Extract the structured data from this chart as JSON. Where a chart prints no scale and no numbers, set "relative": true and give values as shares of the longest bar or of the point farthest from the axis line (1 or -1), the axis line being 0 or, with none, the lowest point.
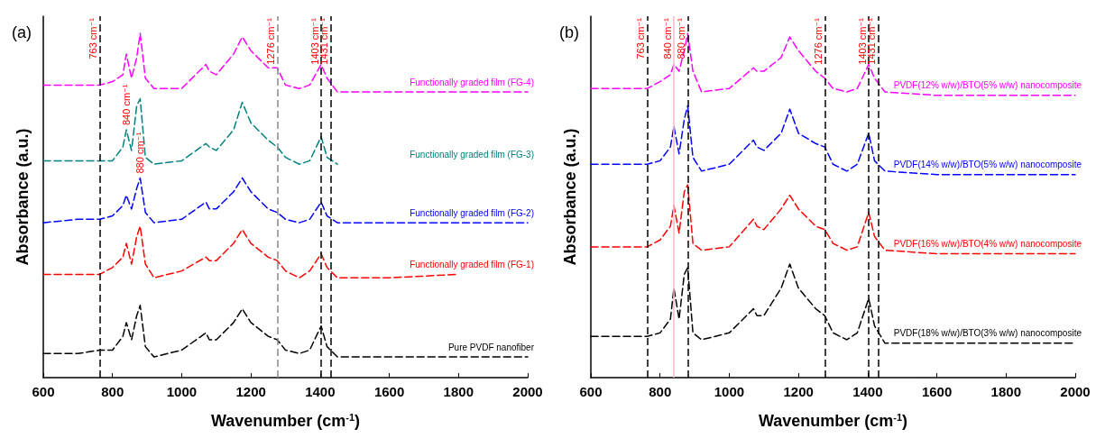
{
  "chart_data": [
    {
      "type": "line",
      "title": "(a)",
      "xlabel": "Wavenumber (cm$^{-1}$)",
      "ylabel": "Absorbance (a.u.)",
      "relative": true,
      "legend": false,
      "grid": false,
      "marker": "none",
      "line_style": "dashed",
      "xlim": [
        600,
        2000
      ],
      "xticks": [
        600,
        800,
        1000,
        1200,
        1400,
        1600,
        1800,
        2000
      ],
      "x": [
        600,
        700,
        763,
        800,
        830,
        840,
        855,
        870,
        880,
        895,
        920,
        1000,
        1070,
        1080,
        1100,
        1150,
        1175,
        1200,
        1250,
        1276,
        1300,
        1340,
        1370,
        1403,
        1420,
        1450,
        1600,
        1800,
        2000
      ],
      "series": [
        {
          "name": "Functionally graded film (FG-4)",
          "color": "#ff00ff",
          "values": [
            0.85,
            0.85,
            0.85,
            0.86,
            0.88,
            0.94,
            0.87,
            0.93,
            1.0,
            0.87,
            0.84,
            0.84,
            0.91,
            0.89,
            0.88,
            0.94,
            0.99,
            0.95,
            0.9,
            0.9,
            0.85,
            0.84,
            0.85,
            0.91,
            0.87,
            0.83,
            0.83,
            0.83,
            0.83
          ]
        },
        {
          "name": "Functionally graded film (FG-3)",
          "color": "#008080",
          "values": [
            0.63,
            0.63,
            0.63,
            0.63,
            0.67,
            0.72,
            0.66,
            0.79,
            0.81,
            0.64,
            0.62,
            0.63,
            0.68,
            0.67,
            0.66,
            0.72,
            0.8,
            0.74,
            0.69,
            0.67,
            0.64,
            0.62,
            0.63,
            0.7,
            0.64,
            0.62,
            null,
            null,
            null
          ]
        },
        {
          "name": "Functionally graded film (FG-2)",
          "color": "#0000ff",
          "values": [
            0.45,
            0.46,
            0.46,
            0.47,
            0.5,
            0.53,
            0.49,
            0.55,
            0.58,
            0.48,
            0.45,
            0.46,
            0.51,
            0.49,
            0.49,
            0.54,
            0.58,
            0.54,
            0.49,
            0.48,
            0.46,
            0.45,
            0.46,
            0.51,
            0.47,
            0.45,
            0.45,
            0.45,
            0.45
          ]
        },
        {
          "name": "Functionally graded film (FG-1)",
          "color": "#ff0000",
          "values": [
            0.3,
            0.3,
            0.3,
            0.32,
            0.35,
            0.39,
            0.33,
            0.41,
            0.44,
            0.33,
            0.29,
            0.31,
            0.35,
            0.34,
            0.34,
            0.39,
            0.43,
            0.39,
            0.35,
            0.34,
            0.31,
            0.29,
            0.31,
            0.36,
            0.32,
            0.29,
            0.29,
            0.3,
            null
          ]
        },
        {
          "name": "Pure PVDF nanofiber",
          "color": "#000000",
          "values": [
            0.07,
            0.07,
            0.08,
            0.08,
            0.12,
            0.16,
            0.11,
            0.18,
            0.21,
            0.09,
            0.06,
            0.08,
            0.13,
            0.11,
            0.11,
            0.16,
            0.2,
            0.16,
            0.12,
            0.11,
            0.08,
            0.07,
            0.08,
            0.15,
            0.09,
            0.06,
            0.06,
            0.06,
            0.06
          ]
        }
      ],
      "ref_lines": [
        {
          "axis": "x",
          "value": 763,
          "label": "763 cm⁻¹",
          "color": "#000000",
          "line_style": "dashed"
        },
        {
          "axis": "x",
          "value": 1276,
          "label": "1276 cm⁻¹",
          "color": "#888888",
          "line_style": "dashed"
        },
        {
          "axis": "x",
          "value": 1403,
          "label": "1403 cm⁻¹",
          "color": "#000000",
          "line_style": "dashed"
        },
        {
          "axis": "x",
          "value": 1431,
          "label": "1431 cm⁻¹",
          "color": "#000000",
          "line_style": "dashed"
        }
      ],
      "annotations": [
        {
          "text": "840 cm⁻¹",
          "x": 840,
          "y": 0.72
        },
        {
          "text": "880 cm⁻¹",
          "x": 880,
          "y": 0.58
        }
      ]
    },
    {
      "type": "line",
      "title": "(b)",
      "xlabel": "Wavenumber (cm$^{-1}$)",
      "ylabel": "Absorbance (a.u.)",
      "relative": true,
      "legend": false,
      "grid": false,
      "marker": "none",
      "line_style": "dashed",
      "xlim": [
        600,
        2000
      ],
      "xticks": [
        600,
        800,
        1000,
        1200,
        1400,
        1600,
        1800,
        2000
      ],
      "x": [
        600,
        700,
        763,
        800,
        830,
        840,
        855,
        870,
        880,
        895,
        920,
        1000,
        1070,
        1080,
        1100,
        1150,
        1175,
        1200,
        1250,
        1276,
        1300,
        1340,
        1370,
        1403,
        1420,
        1450,
        1600,
        1800,
        2000
      ],
      "series": [
        {
          "name": "PVDF(12% w/w)/BTO(5% w/w) nanocomposite",
          "color": "#ff00ff",
          "values": [
            0.84,
            0.84,
            0.84,
            0.86,
            0.88,
            0.91,
            0.89,
            0.95,
            1.0,
            0.89,
            0.83,
            0.84,
            0.9,
            0.89,
            0.89,
            0.93,
            0.99,
            0.95,
            0.89,
            0.87,
            0.84,
            0.83,
            0.84,
            0.91,
            0.87,
            0.83,
            0.82,
            0.82,
            0.82
          ]
        },
        {
          "name": "PVDF(14% w/w)/BTO(5% w/w) nanocomposite",
          "color": "#0000ff",
          "values": [
            0.62,
            0.62,
            0.62,
            0.63,
            0.67,
            0.73,
            0.65,
            0.75,
            0.79,
            0.64,
            0.6,
            0.62,
            0.69,
            0.67,
            0.66,
            0.71,
            0.78,
            0.71,
            0.68,
            0.67,
            0.62,
            0.6,
            0.62,
            0.71,
            0.63,
            0.6,
            0.59,
            0.59,
            0.59
          ]
        },
        {
          "name": "PVDF(16% w/w)/BTO(4% w/w) nanocomposite",
          "color": "#ff0000",
          "values": [
            0.38,
            0.38,
            0.38,
            0.4,
            0.44,
            0.5,
            0.42,
            0.54,
            0.56,
            0.39,
            0.37,
            0.38,
            0.46,
            0.44,
            0.43,
            0.49,
            0.53,
            0.49,
            0.44,
            0.43,
            0.39,
            0.37,
            0.38,
            0.48,
            0.41,
            0.37,
            0.36,
            0.36,
            0.36
          ]
        },
        {
          "name": "PVDF(18% w/w)/BTO(3% w/w) nanocomposite",
          "color": "#000000",
          "values": [
            0.12,
            0.12,
            0.12,
            0.13,
            0.17,
            0.26,
            0.17,
            0.3,
            0.32,
            0.13,
            0.11,
            0.13,
            0.2,
            0.18,
            0.18,
            0.26,
            0.33,
            0.26,
            0.2,
            0.18,
            0.13,
            0.11,
            0.13,
            0.23,
            0.15,
            0.1,
            0.1,
            0.1,
            0.1
          ]
        }
      ],
      "ref_lines": [
        {
          "axis": "x",
          "value": 763,
          "label": "763 cm⁻¹",
          "color": "#000000",
          "line_style": "dashed"
        },
        {
          "axis": "x",
          "value": 840,
          "label": "840 cm⁻¹",
          "color": "#f4b8c8",
          "line_style": "solid"
        },
        {
          "axis": "x",
          "value": 880,
          "label": "880 cm⁻¹",
          "color": "#000000",
          "line_style": "dashed"
        },
        {
          "axis": "x",
          "value": 1276,
          "label": "1276 cm⁻¹",
          "color": "#000000",
          "line_style": "dashed"
        },
        {
          "axis": "x",
          "value": 1403,
          "label": "1403 cm⁻¹",
          "color": "#000000",
          "line_style": "dashed"
        },
        {
          "axis": "x",
          "value": 1431,
          "label": "1431 cm⁻¹",
          "color": "#000000",
          "line_style": "dashed"
        }
      ]
    }
  ]
}
